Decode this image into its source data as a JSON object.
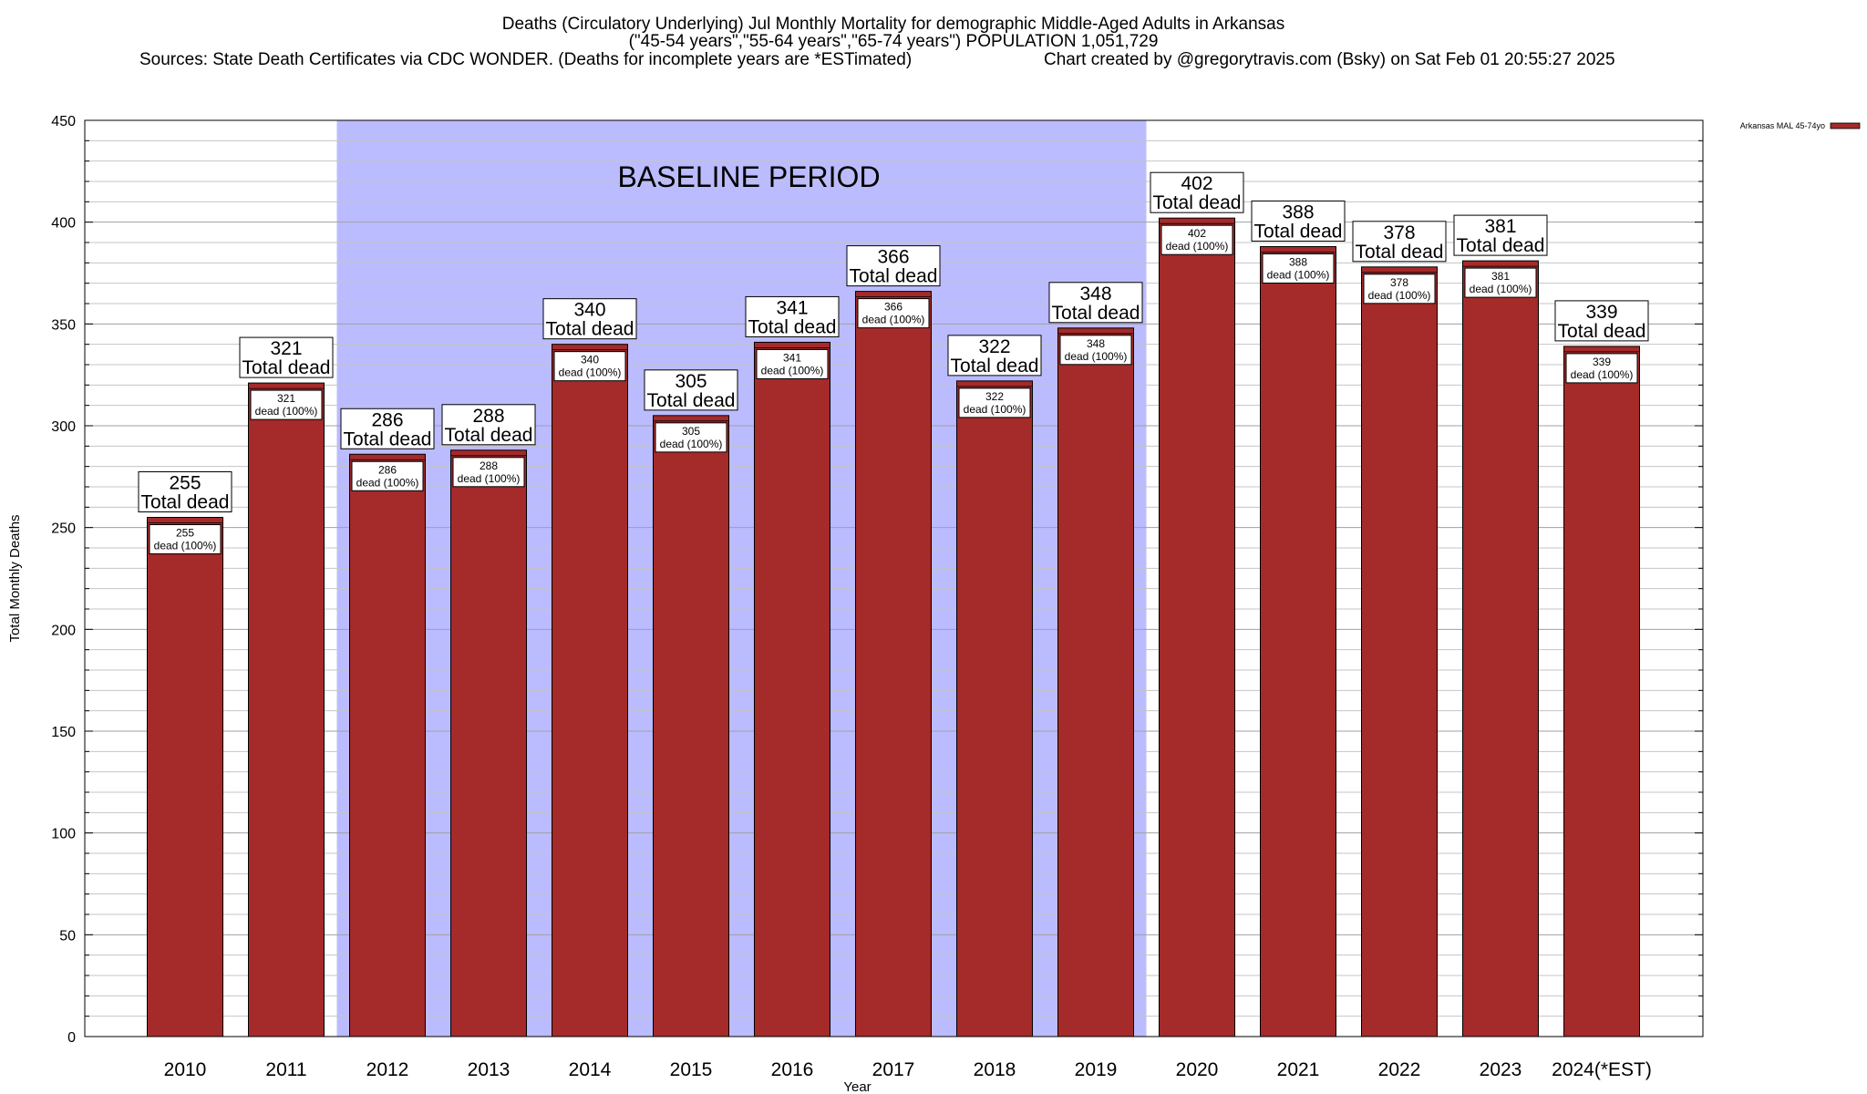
{
  "title": {
    "line1": "Deaths (Circulatory Underlying) Jul Monthly Mortality for demographic Middle-Aged Adults in Arkansas",
    "line2": "(\"45-54 years\",\"55-64 years\",\"65-74 years\") POPULATION 1,051,729",
    "line3_left": "Sources: State Death Certificates via CDC WONDER. (Deaths for incomplete years are *ESTimated)",
    "line3_right": "Chart created by @gregorytravis.com (Bsky) on Sat Feb 01 20:55:27 2025"
  },
  "chart_data": {
    "type": "bar",
    "xlabel": "Year",
    "ylabel": "Total Monthly Deaths",
    "ylim": [
      0,
      450
    ],
    "yticks": [
      0,
      50,
      100,
      150,
      200,
      250,
      300,
      350,
      400,
      450
    ],
    "grid": true,
    "categories": [
      "2010",
      "2011",
      "2012",
      "2013",
      "2014",
      "2015",
      "2016",
      "2017",
      "2018",
      "2019",
      "2020",
      "2021",
      "2022",
      "2023",
      "2024(*EST)"
    ],
    "series": [
      {
        "name": "Arkansas MAL 45-74yo",
        "color": "#a52a2a",
        "values": [
          255,
          321,
          286,
          288,
          340,
          305,
          341,
          366,
          322,
          348,
          402,
          388,
          378,
          381,
          339
        ]
      }
    ],
    "bar_label_text": "Total dead",
    "inner_label_text": "dead (100%)",
    "baseline_period": {
      "label": "BASELINE PERIOD",
      "start": "2012",
      "end": "2019",
      "color": "#bbbbff"
    },
    "legend": {
      "placement": "top-right",
      "entries": [
        "Arkansas MAL 45-74yo"
      ]
    }
  }
}
